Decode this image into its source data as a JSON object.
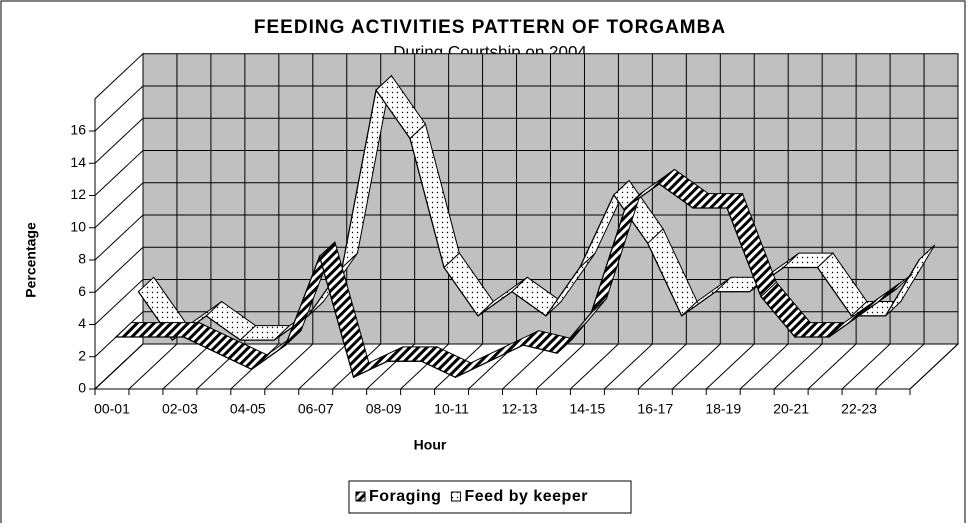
{
  "chart_data": {
    "type": "ribbon_line",
    "title": "FEEDING ACTIVITIES PATTERN OF TORGAMBA",
    "subtitle": "During Courtship on  2004",
    "x_label": "Hour",
    "y_label": "Percentage",
    "categories": [
      "00-01",
      null,
      "02-03",
      null,
      "04-05",
      null,
      "06-07",
      null,
      "08-09",
      null,
      "10-11",
      null,
      "12-13",
      null,
      "14-15",
      null,
      "16-17",
      null,
      "18-19",
      null,
      "20-21",
      null,
      "22-23",
      null
    ],
    "series": [
      {
        "name": "Foraging",
        "color": "#000000",
        "values": [
          3,
          3,
          3,
          2,
          1,
          2.5,
          8,
          0.5,
          1.5,
          1.5,
          0.5,
          1.5,
          2.5,
          2,
          4.5,
          11,
          12.5,
          11,
          11,
          5.5,
          3,
          3,
          4.5,
          6
        ]
      },
      {
        "name": "Feed by keeper",
        "color": "#ffffff",
        "values": [
          4.5,
          1.5,
          3,
          1.5,
          1.5,
          3,
          6,
          17,
          14,
          6,
          3,
          4.5,
          3,
          6,
          10.5,
          7.5,
          3,
          4.5,
          4.5,
          6,
          6,
          3,
          3,
          6.5
        ]
      }
    ],
    "ylim": [
      0,
      18
    ],
    "yticks": [
      0,
      2,
      4,
      6,
      8,
      10,
      12,
      14,
      16
    ],
    "grid": true,
    "legend": "bottom"
  }
}
